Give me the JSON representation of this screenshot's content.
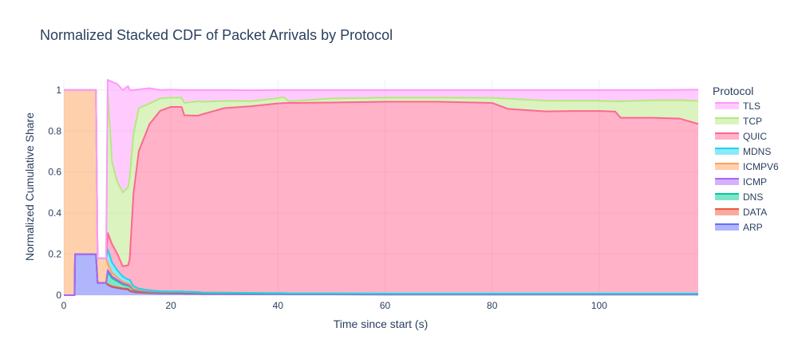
{
  "chart_data": {
    "type": "area",
    "title": "Normalized Stacked CDF of Packet Arrivals by Protocol",
    "xlabel": "Time since start (s)",
    "ylabel": "Normalized Cumulative Share",
    "xlim": [
      0,
      118.5
    ],
    "ylim": [
      0,
      1.05
    ],
    "x_ticks": [
      0,
      20,
      40,
      60,
      80,
      100
    ],
    "x_tick_labels": [
      "0",
      "20",
      "40",
      "60",
      "80",
      "100"
    ],
    "y_ticks": [
      0,
      0.2,
      0.4,
      0.6,
      0.8,
      1
    ],
    "y_tick_labels": [
      "0",
      "0.2",
      "0.4",
      "0.6",
      "0.8",
      "1"
    ],
    "legend_title": "Protocol",
    "legend_position": "right",
    "x": [
      0,
      2,
      2.1,
      6,
      6.3,
      7.9,
      8.2,
      9,
      10,
      11,
      12,
      12.3,
      13,
      14,
      16,
      18,
      20,
      22,
      22.5,
      25,
      26,
      30,
      35,
      40,
      41,
      42,
      50,
      60,
      70,
      80,
      83,
      90,
      95,
      100,
      103,
      104,
      110,
      115,
      118.5
    ],
    "series": [
      {
        "name": "ARP",
        "color": "#636efa",
        "fill": "rgba(99,110,250,0.5)",
        "values": [
          0,
          0,
          0.2,
          0.2,
          0.06,
          0.06,
          0.05,
          0.04,
          0.035,
          0.03,
          0.028,
          0.02,
          0.015,
          0.012,
          0.01,
          0.009,
          0.008,
          0.008,
          0.007,
          0.007,
          0.006,
          0.006,
          0.005,
          0.005,
          0.005,
          0.004,
          0.004,
          0.003,
          0.003,
          0.003,
          0.003,
          0.003,
          0.003,
          0.003,
          0.003,
          0.003,
          0.003,
          0.003,
          0.003
        ]
      },
      {
        "name": "DATA",
        "color": "#ef553b",
        "fill": "rgba(239,85,59,0.5)",
        "values": [
          0,
          0,
          0,
          0,
          0,
          0,
          0.003,
          0.003,
          0.003,
          0.003,
          0.003,
          0.003,
          0.002,
          0.002,
          0.002,
          0.002,
          0.002,
          0.002,
          0.002,
          0.002,
          0.002,
          0.002,
          0.002,
          0.002,
          0.002,
          0.002,
          0.002,
          0.002,
          0.002,
          0.002,
          0.002,
          0.002,
          0.002,
          0.002,
          0.002,
          0.002,
          0.002,
          0.002,
          0.002
        ]
      },
      {
        "name": "DNS",
        "color": "#00cc96",
        "fill": "rgba(0,204,150,0.5)",
        "values": [
          0,
          0,
          0,
          0,
          0,
          0,
          0.06,
          0.04,
          0.03,
          0.02,
          0.015,
          0.02,
          0.008,
          0.006,
          0.004,
          0.003,
          0.003,
          0.003,
          0.003,
          0.002,
          0.002,
          0.002,
          0.002,
          0.001,
          0.001,
          0.001,
          0.001,
          0.001,
          0.001,
          0.001,
          0.001,
          0.001,
          0.001,
          0.001,
          0.001,
          0.001,
          0.001,
          0.001,
          0.001
        ]
      },
      {
        "name": "ICMP",
        "color": "#ab63fa",
        "fill": "rgba(171,99,250,0.5)",
        "values": [
          0,
          0,
          0,
          0,
          0,
          0,
          0.01,
          0.008,
          0.006,
          0.005,
          0.004,
          0.004,
          0.003,
          0.003,
          0.002,
          0.002,
          0.002,
          0.002,
          0.002,
          0.002,
          0.001,
          0.001,
          0.001,
          0.001,
          0.001,
          0.001,
          0.001,
          0.001,
          0.001,
          0.001,
          0.001,
          0.001,
          0.001,
          0.001,
          0.001,
          0.001,
          0.001,
          0.001,
          0.001
        ]
      },
      {
        "name": "ICMPV6",
        "color": "#ffa15a",
        "fill": "rgba(255,161,90,0.5)",
        "values": [
          1,
          1,
          0.8,
          0.8,
          0.12,
          0.12,
          0.03,
          0.018,
          0.012,
          0.008,
          0.006,
          0.008,
          0.004,
          0.003,
          0.003,
          0.002,
          0.002,
          0.002,
          0.002,
          0.002,
          0.002,
          0.001,
          0.001,
          0.001,
          0.001,
          0.001,
          0.001,
          0.001,
          0.001,
          0.001,
          0.001,
          0.001,
          0.001,
          0.001,
          0.001,
          0.001,
          0.001,
          0.001,
          0.001
        ]
      },
      {
        "name": "MDNS",
        "color": "#19d3f3",
        "fill": "rgba(25,211,243,0.5)",
        "values": [
          0,
          0,
          0,
          0,
          0,
          0,
          0.07,
          0.05,
          0.035,
          0.025,
          0.02,
          0.02,
          0.012,
          0.006,
          0.003,
          0.001,
          0.001,
          0.001,
          0.001,
          0,
          0,
          0,
          0,
          0,
          0,
          0,
          0,
          0,
          0,
          0,
          0,
          0,
          0,
          0,
          0,
          0,
          0,
          0,
          0
        ]
      },
      {
        "name": "QUIC",
        "color": "#ff6692",
        "fill": "rgba(255,102,146,0.5)",
        "values": [
          0,
          0,
          0,
          0,
          0,
          0,
          0.08,
          0.09,
          0.08,
          0.05,
          0.07,
          0.1,
          0.45,
          0.67,
          0.81,
          0.88,
          0.9,
          0.9,
          0.86,
          0.86,
          0.87,
          0.9,
          0.91,
          0.925,
          0.926,
          0.928,
          0.93,
          0.935,
          0.935,
          0.929,
          0.9,
          0.888,
          0.89,
          0.89,
          0.887,
          0.857,
          0.857,
          0.853,
          0.827
        ]
      },
      {
        "name": "TCP",
        "color": "#b6e880",
        "fill": "rgba(182,232,128,0.5)",
        "values": [
          0,
          0,
          0,
          0,
          0,
          0,
          0.69,
          0.4,
          0.35,
          0.36,
          0.38,
          0.4,
          0.29,
          0.21,
          0.1,
          0.06,
          0.045,
          0.045,
          0.06,
          0.07,
          0.06,
          0.035,
          0.025,
          0.025,
          0.03,
          0.008,
          0.02,
          0.02,
          0.02,
          0.025,
          0.05,
          0.052,
          0.05,
          0.05,
          0.05,
          0.08,
          0.085,
          0.09,
          0.112
        ]
      },
      {
        "name": "TLS",
        "color": "#ff97ff",
        "fill": "rgba(255,151,255,0.5)",
        "values": [
          0,
          0,
          0,
          0,
          0,
          0,
          0.057,
          0.391,
          0.478,
          0.499,
          0.493,
          0.425,
          0.216,
          0.091,
          0.075,
          0.041,
          0.039,
          0.037,
          0.063,
          0.055,
          0.057,
          0.053,
          0.053,
          0.04,
          0.034,
          0.055,
          0.041,
          0.037,
          0.037,
          0.038,
          0.042,
          0.052,
          0.052,
          0.052,
          0.055,
          0.055,
          0.05,
          0.05,
          0.055
        ]
      }
    ],
    "legend_order": [
      "TLS",
      "TCP",
      "QUIC",
      "MDNS",
      "ICMPV6",
      "ICMP",
      "DNS",
      "DATA",
      "ARP"
    ]
  }
}
